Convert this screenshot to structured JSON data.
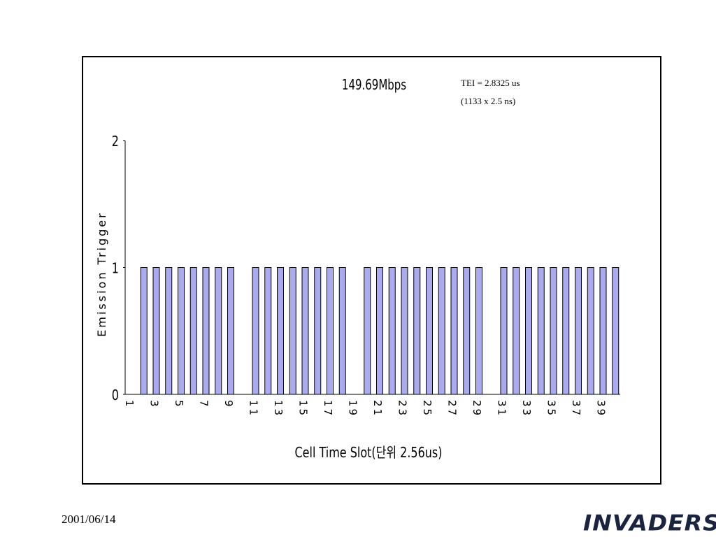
{
  "chart_data": {
    "type": "bar",
    "title": "149.69Mbps",
    "annotation": [
      "TEI = 2.8325 us",
      "(1133 x 2.5 ns)"
    ],
    "xlabel": "Cell Time Slot(단위 2.56us)",
    "ylabel": "Emission Trigger",
    "ylim": [
      0,
      2
    ],
    "yticks": [
      0,
      1,
      2
    ],
    "grid": false,
    "legend": "none",
    "bar_color": "#aaaaee",
    "bar_edge_color": "#000000",
    "xtick_labels": [
      "1",
      "3",
      "5",
      "7",
      "9",
      "11",
      "13",
      "15",
      "17",
      "19",
      "21",
      "23",
      "25",
      "27",
      "29",
      "31",
      "33",
      "35",
      "37",
      "39"
    ],
    "categories": [
      1,
      2,
      3,
      4,
      5,
      6,
      7,
      8,
      9,
      10,
      11,
      12,
      13,
      14,
      15,
      16,
      17,
      18,
      19,
      20,
      21,
      22,
      23,
      24,
      25,
      26,
      27,
      28,
      29,
      30,
      31,
      32,
      33,
      34,
      35,
      36,
      37,
      38,
      39,
      40
    ],
    "values": [
      0,
      1,
      1,
      1,
      1,
      1,
      1,
      1,
      1,
      0,
      1,
      1,
      1,
      1,
      1,
      1,
      1,
      1,
      0,
      1,
      1,
      1,
      1,
      1,
      1,
      1,
      1,
      1,
      1,
      0,
      1,
      1,
      1,
      1,
      1,
      1,
      1,
      1,
      1,
      1
    ]
  },
  "footer": {
    "date": "2001/06/14",
    "logo_text": "INVADERS"
  }
}
